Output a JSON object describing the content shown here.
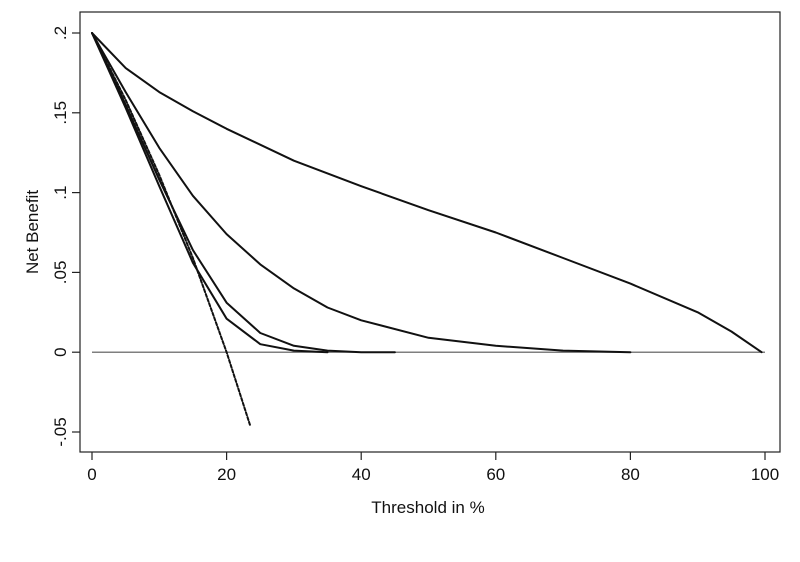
{
  "chart_data": {
    "type": "line",
    "title": "",
    "xlabel": "Threshold in %",
    "ylabel": "Net Benefit",
    "xlim": [
      0,
      100
    ],
    "ylim": [
      -0.05,
      0.2
    ],
    "xticks": [
      {
        "value": 0,
        "label": "0"
      },
      {
        "value": 20,
        "label": "20"
      },
      {
        "value": 40,
        "label": "40"
      },
      {
        "value": 60,
        "label": "60"
      },
      {
        "value": 80,
        "label": "80"
      },
      {
        "value": 100,
        "label": "100"
      }
    ],
    "yticks": [
      {
        "value": -0.05,
        "label": "-.05"
      },
      {
        "value": 0,
        "label": "0"
      },
      {
        "value": 0.05,
        "label": ".05"
      },
      {
        "value": 0.1,
        "label": ".1"
      },
      {
        "value": 0.15,
        "label": ".15"
      },
      {
        "value": 0.2,
        "label": ".2"
      }
    ],
    "grid": false,
    "legend": "none",
    "reference_line": {
      "y": 0,
      "x_from": 0,
      "x_to": 100,
      "color": "#555555"
    },
    "series": [
      {
        "style": "solid",
        "color": "#111111",
        "x": [
          0,
          5,
          10,
          15,
          20,
          30,
          40,
          50,
          60,
          70,
          80,
          90,
          95,
          99.5
        ],
        "y": [
          0.2,
          0.178,
          0.163,
          0.151,
          0.14,
          0.12,
          0.104,
          0.089,
          0.075,
          0.059,
          0.043,
          0.025,
          0.013,
          0
        ]
      },
      {
        "style": "solid",
        "color": "#111111",
        "x": [
          0,
          5,
          10,
          15,
          20,
          25,
          30,
          35,
          40,
          50,
          60,
          70,
          80
        ],
        "y": [
          0.2,
          0.163,
          0.128,
          0.098,
          0.074,
          0.055,
          0.04,
          0.028,
          0.02,
          0.009,
          0.004,
          0.001,
          0
        ]
      },
      {
        "style": "solid",
        "color": "#111111",
        "x": [
          0,
          5,
          10,
          15,
          20,
          25,
          30,
          35,
          40,
          45
        ],
        "y": [
          0.2,
          0.155,
          0.108,
          0.064,
          0.031,
          0.012,
          0.004,
          0.001,
          0,
          0
        ]
      },
      {
        "style": "solid",
        "color": "#111111",
        "x": [
          0,
          5,
          10,
          15,
          20,
          25,
          30,
          35
        ],
        "y": [
          0.2,
          0.153,
          0.104,
          0.056,
          0.021,
          0.005,
          0.001,
          0
        ]
      },
      {
        "style": "dotted",
        "color": "#111111",
        "x": [
          0,
          5,
          10,
          15,
          20,
          23.5
        ],
        "y": [
          0.2,
          0.158,
          0.111,
          0.059,
          0,
          -0.046
        ]
      }
    ]
  }
}
